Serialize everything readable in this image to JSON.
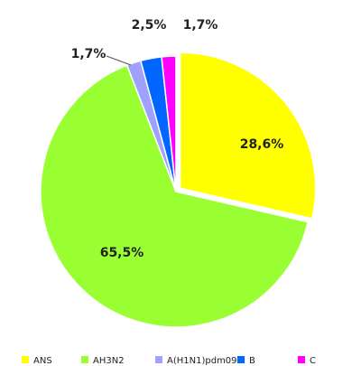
{
  "chart_data": {
    "type": "pie",
    "categories": [
      "ANS",
      "AH3N2",
      "A(H1N1)pdm09",
      "B",
      "C"
    ],
    "values": [
      28.6,
      65.5,
      1.7,
      2.5,
      1.7
    ],
    "value_labels": [
      "28,6%",
      "65,5%",
      "1,7%",
      "2,5%",
      "1,7%"
    ],
    "colors": [
      "#ffff00",
      "#99ff33",
      "#a0a0ff",
      "#0066ff",
      "#ff00ff"
    ],
    "legend": "bottom"
  }
}
